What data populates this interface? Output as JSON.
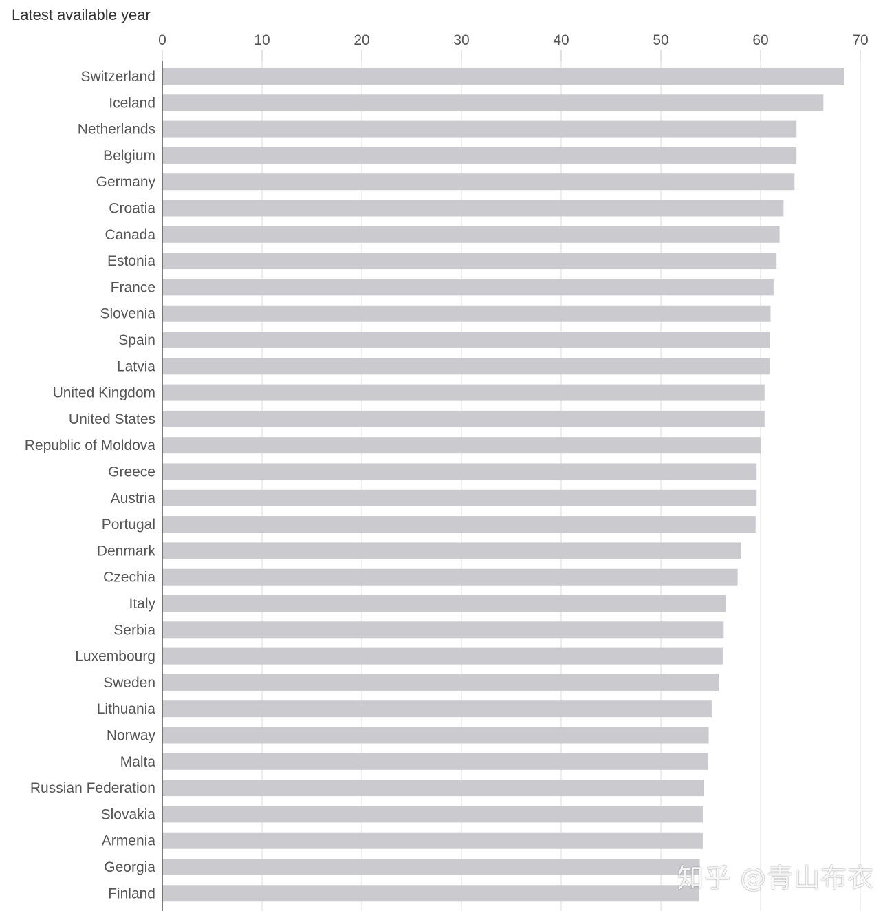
{
  "chart_data": {
    "type": "bar",
    "orientation": "horizontal",
    "subtitle": "Latest available year",
    "xlim": [
      0,
      70
    ],
    "x_ticks": [
      0,
      10,
      20,
      30,
      40,
      50,
      60,
      70
    ],
    "grid": true,
    "categories": [
      "Switzerland",
      "Iceland",
      "Netherlands",
      "Belgium",
      "Germany",
      "Croatia",
      "Canada",
      "Estonia",
      "France",
      "Slovenia",
      "Spain",
      "Latvia",
      "United Kingdom",
      "United States",
      "Republic of Moldova",
      "Greece",
      "Austria",
      "Portugal",
      "Denmark",
      "Czechia",
      "Italy",
      "Serbia",
      "Luxembourg",
      "Sweden",
      "Lithuania",
      "Norway",
      "Malta",
      "Russian Federation",
      "Slovakia",
      "Armenia",
      "Georgia",
      "Finland"
    ],
    "values": [
      68.4,
      66.3,
      63.6,
      63.6,
      63.4,
      62.3,
      61.9,
      61.6,
      61.3,
      61.0,
      60.9,
      60.9,
      60.4,
      60.4,
      60.0,
      59.6,
      59.6,
      59.5,
      58.0,
      57.7,
      56.5,
      56.3,
      56.2,
      55.8,
      55.1,
      54.8,
      54.7,
      54.3,
      54.2,
      54.2,
      53.9,
      53.8
    ],
    "bar_color": "#cbcbcf"
  },
  "watermark": {
    "text": "知乎 @青山布衣"
  }
}
